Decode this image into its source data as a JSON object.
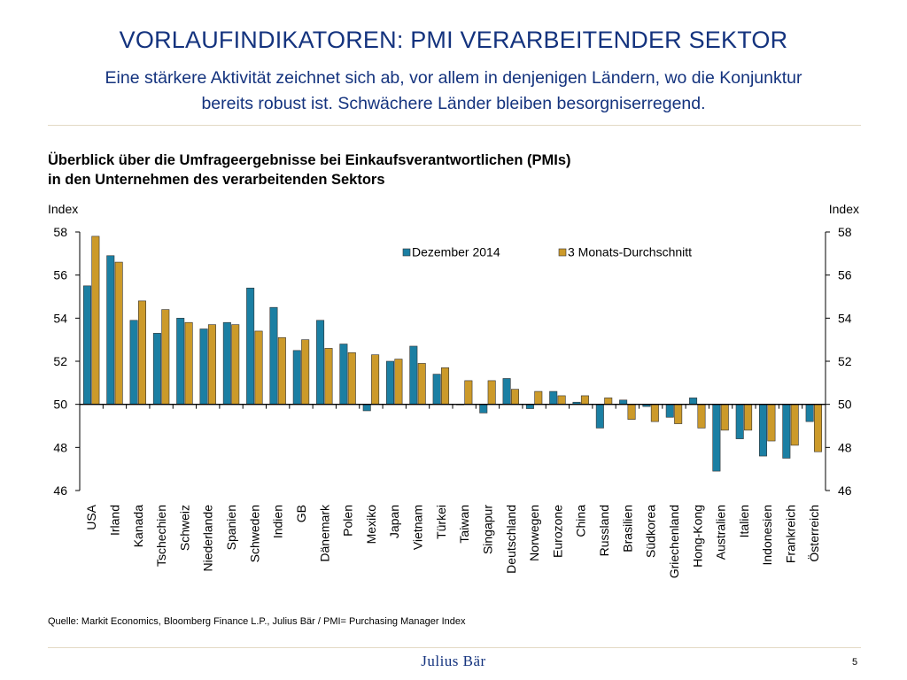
{
  "slide": {
    "title": "VORLAUFINDIKATOREN: PMI VERARBEITENDER SEKTOR",
    "subtitle": "Eine stärkere Aktivität zeichnet sich ab, vor allem in denjenigen Ländern, wo die Konjunktur bereits robust ist. Schwächere Länder bleiben besorgniserregend.",
    "source": "Quelle: Markit Economics, Bloomberg Finance L.P., Julius Bär / PMI= Purchasing Manager Index",
    "logo_text": "Julius Bär",
    "page_number": "5"
  },
  "colors": {
    "accent": "#14337e",
    "series_dez": "#1b7fa3",
    "series_avg": "#cc9a2a",
    "rule": "#e3d9c5"
  },
  "chart_data": {
    "type": "bar",
    "title": "Überblick über die Umfrageergebnisse bei Einkaufsverantwortlichen (PMIs)\nin den Unternehmen des verarbeitenden Sektors",
    "title_lines": [
      "Überblick über die Umfrageergebnisse bei Einkaufsverantwortlichen (PMIs)",
      "in den Unternehmen des verarbeitenden Sektors"
    ],
    "ylabel_left": "Index",
    "ylabel_right": "Index",
    "ylim": [
      46,
      58
    ],
    "yticks": [
      46,
      48,
      50,
      52,
      54,
      56,
      58
    ],
    "baseline": 50,
    "legend_position": "top-right",
    "categories": [
      "USA",
      "Irland",
      "Kanada",
      "Tschechien",
      "Schweiz",
      "Niederlande",
      "Spanien",
      "Schweden",
      "Indien",
      "GB",
      "Dänemark",
      "Polen",
      "Mexiko",
      "Japan",
      "Vietnam",
      "Türkei",
      "Taiwan",
      "Singapur",
      "Deutschland",
      "Norwegen",
      "Eurozone",
      "China",
      "Russland",
      "Brasilien",
      "Südkorea",
      "Griechenland",
      "Hong-Kong",
      "Australien",
      "Italien",
      "Indonesien",
      "Frankreich",
      "Österreich"
    ],
    "series": [
      {
        "name": "Dezember 2014",
        "color": "#1b7fa3",
        "values": [
          55.5,
          56.9,
          53.9,
          53.3,
          54.0,
          53.5,
          53.8,
          55.4,
          54.5,
          52.5,
          53.9,
          52.8,
          49.7,
          52.0,
          52.7,
          51.4,
          50.0,
          49.6,
          51.2,
          49.8,
          50.6,
          50.1,
          48.9,
          50.2,
          49.9,
          49.4,
          50.3,
          46.9,
          48.4,
          47.6,
          47.5,
          49.2
        ]
      },
      {
        "name": "3 Monats-Durchschnitt",
        "color": "#cc9a2a",
        "values": [
          57.8,
          56.6,
          54.8,
          54.4,
          53.8,
          53.7,
          53.7,
          53.4,
          53.1,
          53.0,
          52.6,
          52.4,
          52.3,
          52.1,
          51.9,
          51.7,
          51.1,
          51.1,
          50.7,
          50.6,
          50.4,
          50.4,
          50.3,
          49.3,
          49.2,
          49.1,
          48.9,
          48.8,
          48.8,
          48.3,
          48.1,
          47.8
        ]
      }
    ]
  }
}
